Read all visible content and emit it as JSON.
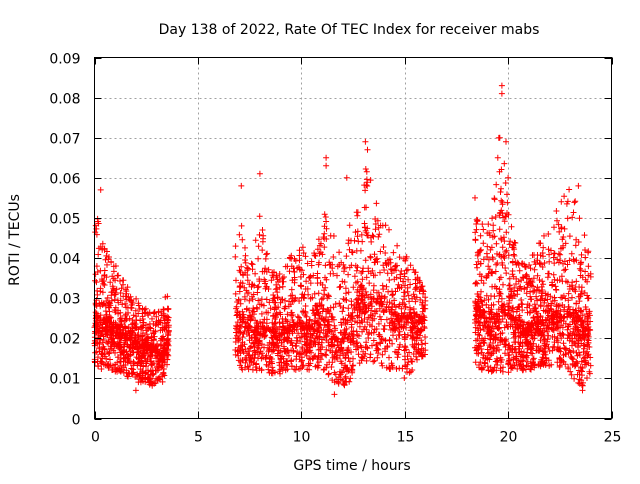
{
  "chart_data": {
    "type": "scatter",
    "title": "Day 138 of 2022, Rate Of TEC Index for receiver mabs",
    "xlabel": "GPS time / hours",
    "ylabel": "ROTI / TECUs",
    "xlim": [
      0,
      25
    ],
    "ylim": [
      0,
      0.09
    ],
    "x_ticks": [
      0,
      5,
      10,
      15,
      20,
      25
    ],
    "y_ticks": [
      0,
      0.01,
      0.02,
      0.03,
      0.04,
      0.05,
      0.06,
      0.07,
      0.08,
      0.09
    ],
    "x_tick_labels": [
      "0",
      "5",
      "10",
      "15",
      "20",
      "25"
    ],
    "y_tick_labels": [
      "0",
      "0.01",
      "0.02",
      "0.03",
      "0.04",
      "0.05",
      "0.06",
      "0.07",
      "0.08",
      "0.09"
    ],
    "grid": true,
    "legend": "none",
    "marker": "plus",
    "color": "#ff0000",
    "segments": [
      {
        "x": [
          0.0,
          0.1,
          0.2,
          0.3,
          0.4,
          0.5,
          0.6,
          0.7,
          0.8,
          0.9,
          1.0,
          1.1,
          1.2,
          1.3,
          1.4,
          1.5,
          1.6,
          1.7,
          1.8,
          1.9,
          2.0,
          2.1,
          2.2,
          2.3,
          2.4,
          2.5,
          2.6,
          2.7,
          2.8,
          2.9,
          3.0,
          3.1,
          3.2,
          3.3,
          3.4,
          3.5,
          3.6
        ],
        "median": [
          0.024,
          0.023,
          0.022,
          0.022,
          0.023,
          0.024,
          0.024,
          0.023,
          0.022,
          0.022,
          0.023,
          0.022,
          0.021,
          0.021,
          0.021,
          0.021,
          0.02,
          0.02,
          0.02,
          0.019,
          0.019,
          0.018,
          0.018,
          0.018,
          0.018,
          0.018,
          0.018,
          0.017,
          0.017,
          0.017,
          0.017,
          0.016,
          0.016,
          0.016,
          0.017,
          0.019,
          0.022
        ],
        "spread_low": [
          0.012,
          0.012,
          0.012,
          0.012,
          0.012,
          0.013,
          0.013,
          0.012,
          0.012,
          0.011,
          0.011,
          0.011,
          0.011,
          0.011,
          0.011,
          0.011,
          0.01,
          0.01,
          0.01,
          0.01,
          0.009,
          0.009,
          0.009,
          0.009,
          0.009,
          0.009,
          0.009,
          0.008,
          0.008,
          0.008,
          0.008,
          0.008,
          0.008,
          0.009,
          0.011,
          0.013,
          0.015
        ],
        "spread_high": [
          0.045,
          0.052,
          0.05,
          0.048,
          0.046,
          0.045,
          0.044,
          0.042,
          0.04,
          0.039,
          0.039,
          0.038,
          0.037,
          0.036,
          0.036,
          0.035,
          0.033,
          0.032,
          0.031,
          0.03,
          0.03,
          0.029,
          0.029,
          0.028,
          0.028,
          0.028,
          0.027,
          0.027,
          0.027,
          0.027,
          0.027,
          0.027,
          0.027,
          0.028,
          0.03,
          0.032,
          0.032
        ],
        "n_points": 900
      },
      {
        "x": [
          6.8,
          7.0,
          7.2,
          7.4,
          7.6,
          7.8,
          8.0,
          8.2,
          8.4,
          8.6,
          8.8,
          9.0,
          9.2,
          9.4,
          9.6,
          9.8,
          10.0,
          10.2,
          10.4,
          10.6,
          10.8,
          11.0,
          11.2,
          11.4,
          11.6,
          11.8,
          12.0,
          12.2,
          12.4,
          12.6,
          12.8,
          13.0,
          13.2,
          13.4,
          13.6,
          13.8,
          14.0,
          14.2,
          14.4,
          14.6,
          14.8,
          15.0,
          15.2,
          15.4,
          15.6,
          15.8,
          16.0
        ],
        "median": [
          0.027,
          0.026,
          0.025,
          0.023,
          0.022,
          0.022,
          0.021,
          0.022,
          0.022,
          0.021,
          0.02,
          0.021,
          0.022,
          0.022,
          0.023,
          0.023,
          0.023,
          0.022,
          0.022,
          0.023,
          0.024,
          0.025,
          0.024,
          0.022,
          0.02,
          0.019,
          0.019,
          0.022,
          0.025,
          0.028,
          0.029,
          0.03,
          0.031,
          0.03,
          0.029,
          0.028,
          0.027,
          0.027,
          0.026,
          0.026,
          0.025,
          0.025,
          0.025,
          0.025,
          0.024,
          0.024,
          0.024
        ],
        "spread_low": [
          0.012,
          0.012,
          0.012,
          0.012,
          0.012,
          0.012,
          0.011,
          0.011,
          0.011,
          0.011,
          0.011,
          0.011,
          0.012,
          0.012,
          0.012,
          0.012,
          0.012,
          0.012,
          0.012,
          0.012,
          0.012,
          0.012,
          0.011,
          0.01,
          0.009,
          0.008,
          0.007,
          0.008,
          0.01,
          0.012,
          0.013,
          0.014,
          0.014,
          0.014,
          0.013,
          0.013,
          0.013,
          0.012,
          0.012,
          0.012,
          0.011,
          0.01,
          0.01,
          0.012,
          0.014,
          0.015,
          0.016
        ],
        "spread_high": [
          0.056,
          0.052,
          0.045,
          0.042,
          0.04,
          0.045,
          0.055,
          0.045,
          0.04,
          0.038,
          0.036,
          0.037,
          0.038,
          0.04,
          0.042,
          0.044,
          0.045,
          0.042,
          0.04,
          0.041,
          0.045,
          0.05,
          0.055,
          0.05,
          0.045,
          0.042,
          0.042,
          0.045,
          0.05,
          0.052,
          0.052,
          0.06,
          0.065,
          0.058,
          0.054,
          0.052,
          0.05,
          0.048,
          0.046,
          0.044,
          0.043,
          0.042,
          0.04,
          0.038,
          0.036,
          0.034,
          0.032
        ],
        "n_points": 1700
      },
      {
        "x": [
          18.4,
          18.6,
          18.8,
          19.0,
          19.2,
          19.4,
          19.6,
          19.8,
          20.0,
          20.2,
          20.4,
          20.6,
          20.8,
          21.0,
          21.2,
          21.4,
          21.6,
          21.8,
          22.0,
          22.2,
          22.4,
          22.6,
          22.8,
          23.0,
          23.2,
          23.4,
          23.6,
          23.8,
          24.0
        ],
        "median": [
          0.028,
          0.026,
          0.025,
          0.024,
          0.024,
          0.025,
          0.028,
          0.027,
          0.026,
          0.025,
          0.024,
          0.023,
          0.022,
          0.022,
          0.023,
          0.024,
          0.024,
          0.024,
          0.025,
          0.025,
          0.025,
          0.025,
          0.026,
          0.026,
          0.025,
          0.024,
          0.023,
          0.022,
          0.022
        ],
        "spread_low": [
          0.012,
          0.012,
          0.012,
          0.011,
          0.011,
          0.011,
          0.011,
          0.011,
          0.011,
          0.012,
          0.012,
          0.012,
          0.012,
          0.012,
          0.012,
          0.012,
          0.013,
          0.013,
          0.013,
          0.013,
          0.013,
          0.012,
          0.012,
          0.011,
          0.009,
          0.008,
          0.008,
          0.009,
          0.011
        ],
        "spread_high": [
          0.052,
          0.05,
          0.048,
          0.052,
          0.055,
          0.06,
          0.075,
          0.065,
          0.055,
          0.048,
          0.044,
          0.042,
          0.04,
          0.04,
          0.041,
          0.043,
          0.045,
          0.046,
          0.048,
          0.05,
          0.053,
          0.056,
          0.058,
          0.057,
          0.055,
          0.052,
          0.048,
          0.044,
          0.042
        ],
        "n_points": 1300
      }
    ],
    "outliers": [
      {
        "x": 0.3,
        "y": 0.057
      },
      {
        "x": 7.1,
        "y": 0.058
      },
      {
        "x": 8.0,
        "y": 0.061
      },
      {
        "x": 11.2,
        "y": 0.065
      },
      {
        "x": 11.2,
        "y": 0.063
      },
      {
        "x": 12.2,
        "y": 0.06
      },
      {
        "x": 13.1,
        "y": 0.069
      },
      {
        "x": 13.2,
        "y": 0.067
      },
      {
        "x": 19.7,
        "y": 0.083
      },
      {
        "x": 19.7,
        "y": 0.081
      },
      {
        "x": 19.6,
        "y": 0.07
      },
      {
        "x": 19.9,
        "y": 0.069
      },
      {
        "x": 19.5,
        "y": 0.065
      },
      {
        "x": 20.0,
        "y": 0.06
      },
      {
        "x": 23.4,
        "y": 0.058
      },
      {
        "x": 18.4,
        "y": 0.055
      },
      {
        "x": 11.6,
        "y": 0.006
      },
      {
        "x": 2.0,
        "y": 0.007
      },
      {
        "x": 23.6,
        "y": 0.007
      }
    ]
  }
}
